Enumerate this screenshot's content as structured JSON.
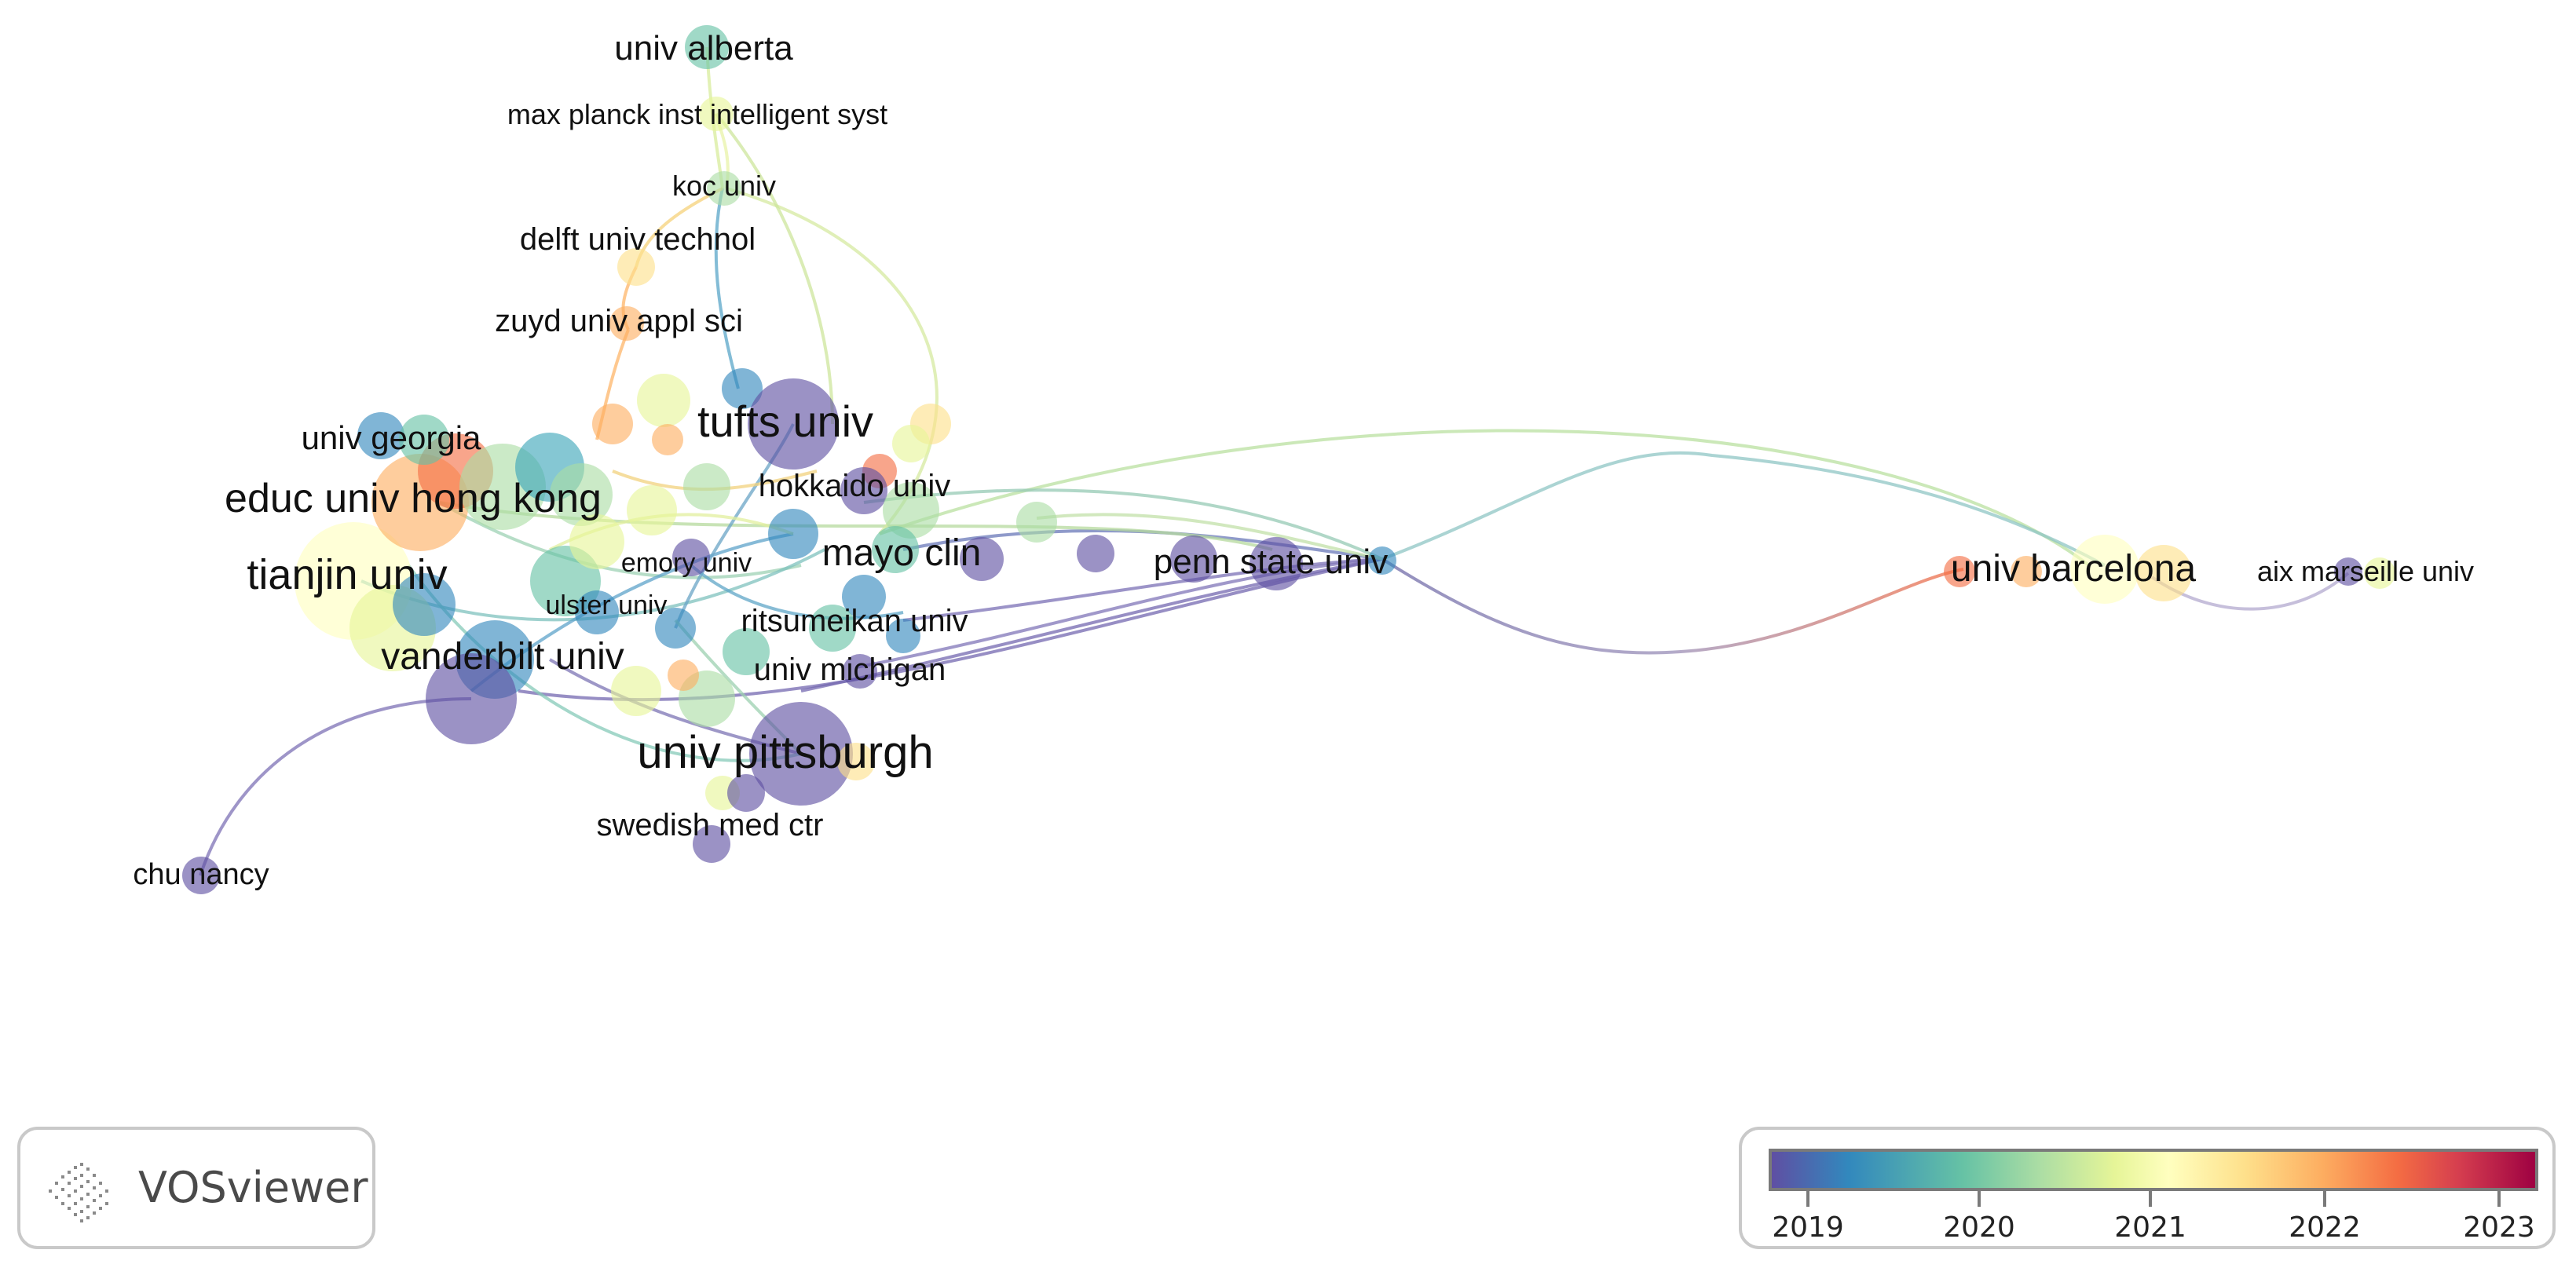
{
  "app": "VOSviewer",
  "colors": {
    "purple": "#5e4fa2",
    "blue": "#3288bd",
    "teal": "#66c2a5",
    "green": "#abdda4",
    "yellowgreen": "#e6f598",
    "yellow": "#ffffbf",
    "lightorange": "#fee08b",
    "orange": "#fdae61",
    "red": "#f46d43"
  },
  "labels": [
    {
      "id": "univ-alberta",
      "text": "univ alberta"
    },
    {
      "id": "max-planck",
      "text": "max planck inst intelligent syst"
    },
    {
      "id": "koc-univ",
      "text": "koc univ"
    },
    {
      "id": "delft-univ",
      "text": "delft univ technol"
    },
    {
      "id": "zuyd-univ",
      "text": "zuyd univ appl sci"
    },
    {
      "id": "tufts-univ",
      "text": "tufts univ"
    },
    {
      "id": "univ-georgia",
      "text": "univ georgia"
    },
    {
      "id": "hokkaido-univ",
      "text": "hokkaido univ"
    },
    {
      "id": "educ-univ-hong-kong",
      "text": "educ univ hong kong"
    },
    {
      "id": "mayo-clin",
      "text": "mayo clin"
    },
    {
      "id": "penn-state-univ",
      "text": "penn state univ"
    },
    {
      "id": "univ-barcelona",
      "text": "univ barcelona"
    },
    {
      "id": "aix-marseille-univ",
      "text": "aix marseille univ"
    },
    {
      "id": "emory-univ",
      "text": "emory univ"
    },
    {
      "id": "tianjin-univ",
      "text": "tianjin univ"
    },
    {
      "id": "ulster-univ",
      "text": "ulster univ"
    },
    {
      "id": "ritsumeikan-univ",
      "text": "ritsumeikan univ"
    },
    {
      "id": "vanderbilt-univ",
      "text": "vanderbilt univ"
    },
    {
      "id": "univ-michigan",
      "text": "univ michigan"
    },
    {
      "id": "univ-pittsburgh",
      "text": "univ pittsburgh"
    },
    {
      "id": "swedish-med-ctr",
      "text": "swedish med ctr"
    },
    {
      "id": "chu-nancy",
      "text": "chu nancy"
    }
  ],
  "legend": {
    "years": [
      "2019",
      "2020",
      "2021",
      "2022",
      "2023"
    ]
  }
}
